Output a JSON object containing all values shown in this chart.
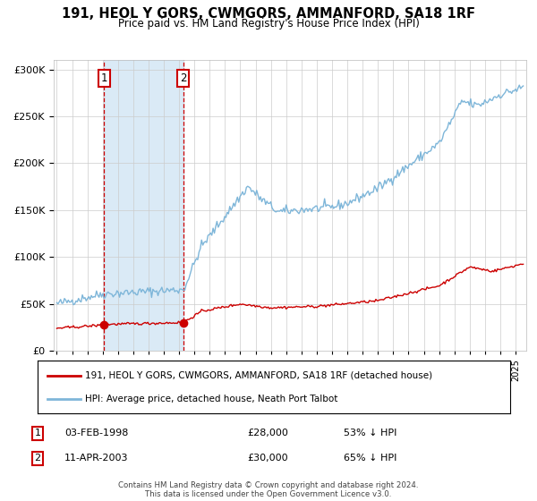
{
  "title": "191, HEOL Y GORS, CWMGORS, AMMANFORD, SA18 1RF",
  "subtitle": "Price paid vs. HM Land Registry's House Price Index (HPI)",
  "ylim": [
    0,
    310000
  ],
  "xlim_start": 1994.8,
  "xlim_end": 2025.7,
  "hpi_color": "#7EB6D9",
  "price_color": "#CC0000",
  "purchase1_date": 1998.09,
  "purchase1_price": 28000,
  "purchase1_label": "1",
  "purchase2_date": 2003.27,
  "purchase2_price": 30000,
  "purchase2_label": "2",
  "legend_line1": "191, HEOL Y GORS, CWMGORS, AMMANFORD, SA18 1RF (detached house)",
  "legend_line2": "HPI: Average price, detached house, Neath Port Talbot",
  "table_row1": [
    "1",
    "03-FEB-1998",
    "£28,000",
    "53% ↓ HPI"
  ],
  "table_row2": [
    "2",
    "11-APR-2003",
    "£30,000",
    "65% ↓ HPI"
  ],
  "footer": "Contains HM Land Registry data © Crown copyright and database right 2024.\nThis data is licensed under the Open Government Licence v3.0.",
  "shaded_region_start": 1998.09,
  "shaded_region_end": 2003.27,
  "background_color": "#ffffff",
  "grid_color": "#cccccc"
}
